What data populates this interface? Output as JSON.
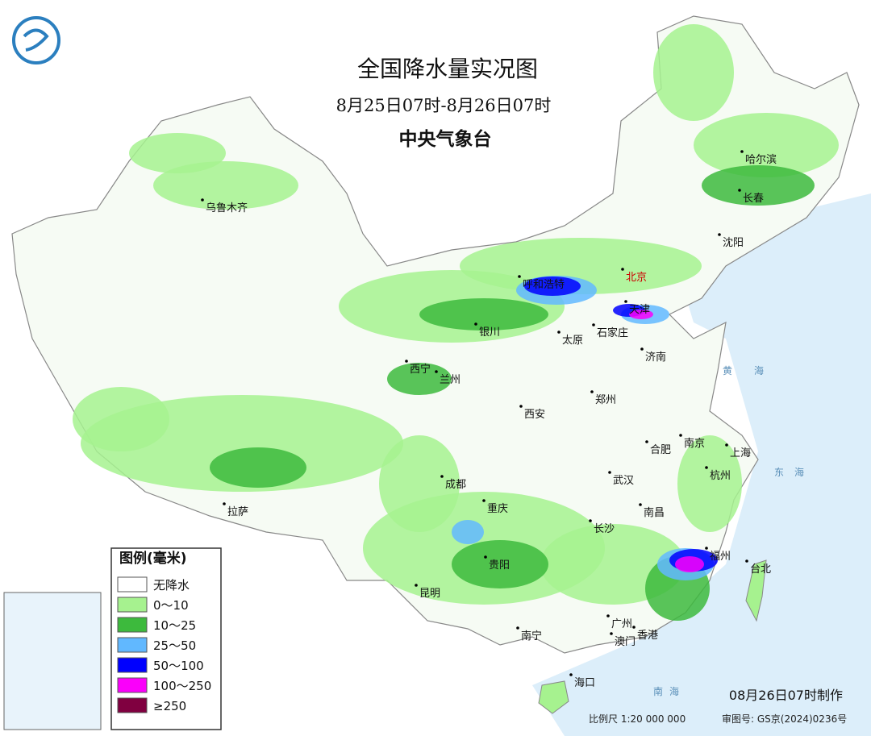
{
  "header": {
    "title": "全国降水量实况图",
    "period": "8月25日07时-8月26日07时",
    "agency": "中央气象台"
  },
  "legend": {
    "title": "图例(毫米)",
    "items": [
      {
        "label": "无降水",
        "color": "#ffffff"
      },
      {
        "label": "0～10",
        "color": "#a6f28f"
      },
      {
        "label": "10～25",
        "color": "#3dba3d"
      },
      {
        "label": "25～50",
        "color": "#61b8ff"
      },
      {
        "label": "50～100",
        "color": "#0000fe"
      },
      {
        "label": "100～250",
        "color": "#fa00fa"
      },
      {
        "label": "≥250",
        "color": "#800040"
      }
    ]
  },
  "cities": [
    "乌鲁木齐",
    "哈尔滨",
    "长春",
    "沈阳",
    "呼和浩特",
    "北京",
    "天津",
    "银川",
    "太原",
    "石家庄",
    "济南",
    "西宁",
    "兰州",
    "郑州",
    "西安",
    "合肥",
    "南京",
    "上海",
    "杭州",
    "成都",
    "武汉",
    "拉萨",
    "重庆",
    "南昌",
    "长沙",
    "福州",
    "台北",
    "贵阳",
    "昆明",
    "广州",
    "香港",
    "澳门",
    "南宁",
    "海口"
  ],
  "seas": [
    "黄",
    "海",
    "东",
    "海",
    "南",
    "海"
  ],
  "footer": {
    "made": "08月26日07时制作",
    "scale": "比例尺 1:20 000 000",
    "map_no": "审图号: GS京(2024)0236号"
  }
}
